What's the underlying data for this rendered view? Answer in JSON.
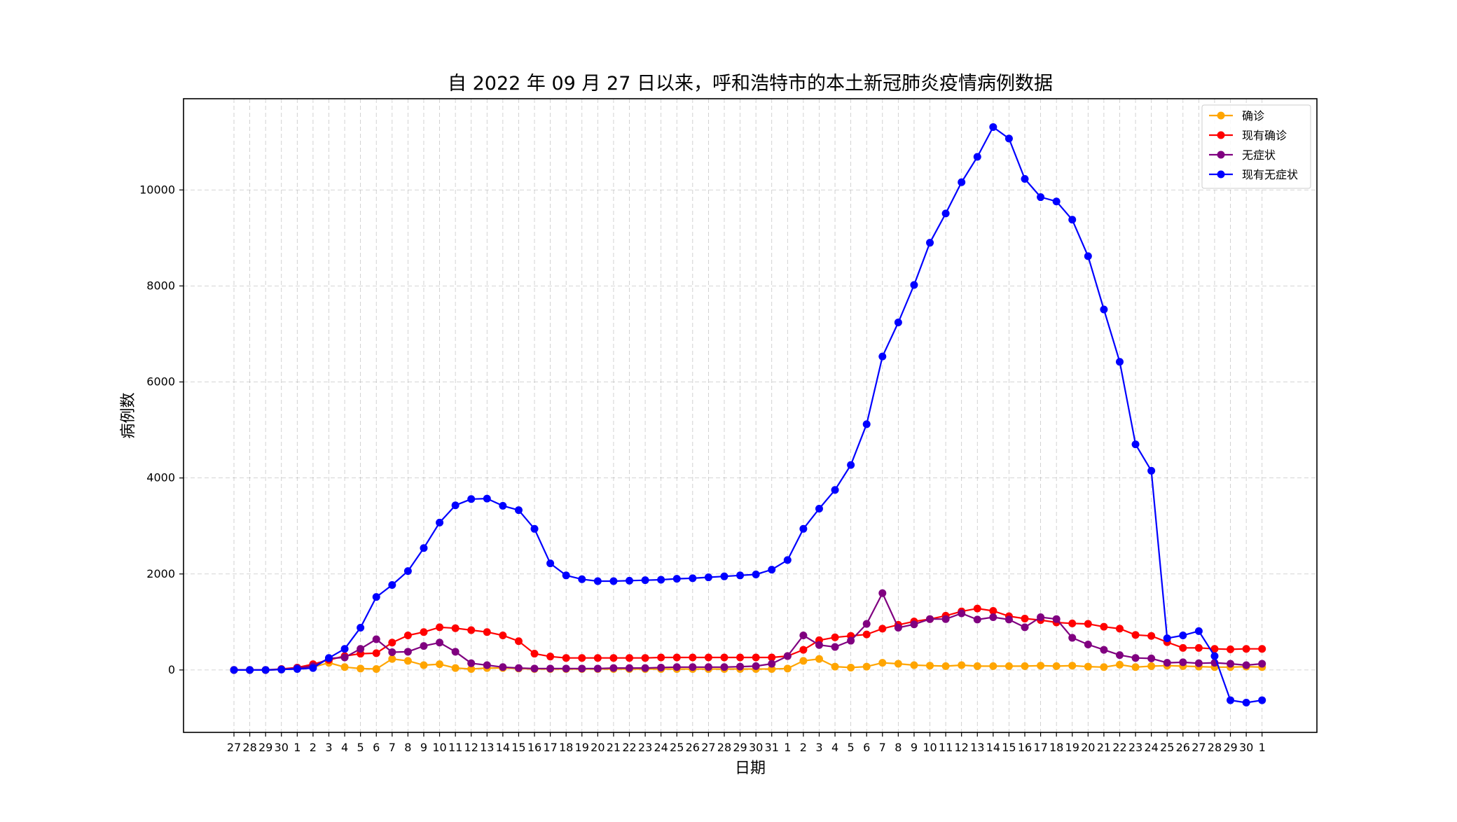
{
  "chart_data": {
    "type": "line",
    "title": "自 2022 年 09 月 27 日以来，呼和浩特市的本土新冠肺炎疫情病例数据",
    "xlabel": "日期",
    "ylabel": "病例数",
    "categories": [
      "27",
      "28",
      "29",
      "30",
      "1",
      "2",
      "3",
      "4",
      "5",
      "6",
      "7",
      "8",
      "9",
      "10",
      "11",
      "12",
      "13",
      "14",
      "15",
      "16",
      "17",
      "18",
      "19",
      "20",
      "21",
      "22",
      "23",
      "24",
      "25",
      "26",
      "27",
      "28",
      "29",
      "30",
      "31",
      "1",
      "2",
      "3",
      "4",
      "5",
      "6",
      "7",
      "8",
      "9",
      "10",
      "11",
      "12",
      "13",
      "14",
      "15",
      "16",
      "17",
      "18",
      "19",
      "20",
      "21",
      "22",
      "23",
      "24",
      "25",
      "26",
      "27",
      "28",
      "29",
      "30",
      "1"
    ],
    "ylim": [
      -1300,
      11900
    ],
    "yticks": [
      0,
      2000,
      4000,
      6000,
      8000,
      10000
    ],
    "grid": true,
    "legend_position": "upper-right",
    "series": [
      {
        "name": "确诊",
        "color": "#ffa500",
        "values": [
          0,
          0,
          0,
          10,
          30,
          60,
          150,
          60,
          30,
          20,
          230,
          190,
          100,
          120,
          40,
          20,
          40,
          40,
          30,
          20,
          20,
          20,
          20,
          20,
          20,
          20,
          20,
          20,
          20,
          20,
          20,
          20,
          20,
          20,
          20,
          30,
          190,
          230,
          70,
          50,
          70,
          150,
          130,
          100,
          90,
          80,
          100,
          80,
          80,
          80,
          80,
          90,
          80,
          90,
          70,
          60,
          110,
          60,
          80,
          90,
          80,
          70,
          60,
          60,
          70,
          60
        ]
      },
      {
        "name": "现有确诊",
        "color": "#ff0000",
        "values": [
          0,
          0,
          0,
          20,
          50,
          120,
          210,
          290,
          340,
          350,
          570,
          720,
          790,
          890,
          870,
          830,
          790,
          720,
          600,
          340,
          280,
          250,
          250,
          250,
          250,
          250,
          250,
          260,
          260,
          260,
          260,
          260,
          260,
          260,
          260,
          290,
          420,
          620,
          680,
          710,
          740,
          860,
          940,
          1010,
          1060,
          1130,
          1220,
          1280,
          1230,
          1120,
          1070,
          1040,
          990,
          970,
          960,
          900,
          860,
          730,
          710,
          580,
          460,
          460,
          440,
          430,
          440,
          440
        ]
      },
      {
        "name": "无症状",
        "color": "#800080",
        "values": [
          0,
          0,
          0,
          10,
          40,
          80,
          240,
          260,
          440,
          640,
          370,
          380,
          500,
          570,
          380,
          140,
          100,
          60,
          40,
          30,
          30,
          30,
          30,
          30,
          40,
          40,
          40,
          50,
          60,
          60,
          60,
          60,
          70,
          80,
          130,
          290,
          720,
          520,
          480,
          610,
          960,
          1600,
          880,
          950,
          1060,
          1060,
          1180,
          1050,
          1100,
          1050,
          890,
          1100,
          1060,
          670,
          530,
          420,
          310,
          250,
          240,
          150,
          160,
          140,
          150,
          130,
          100,
          130
        ]
      },
      {
        "name": "现有无症状",
        "color": "#0000ff",
        "values": [
          0,
          0,
          0,
          10,
          20,
          40,
          250,
          440,
          880,
          1520,
          1770,
          2060,
          2540,
          3070,
          3430,
          3560,
          3570,
          3420,
          3330,
          2940,
          2220,
          1970,
          1890,
          1850,
          1850,
          1860,
          1870,
          1880,
          1900,
          1910,
          1930,
          1950,
          1970,
          1990,
          2090,
          2290,
          2940,
          3360,
          3750,
          4270,
          5120,
          6530,
          7240,
          8020,
          8900,
          9510,
          10160,
          10690,
          11310,
          11070,
          10230,
          9850,
          9760,
          9380,
          8620,
          7510,
          6420,
          4700,
          4150,
          660,
          720,
          810,
          290,
          -630,
          -680,
          -630
        ]
      }
    ]
  }
}
